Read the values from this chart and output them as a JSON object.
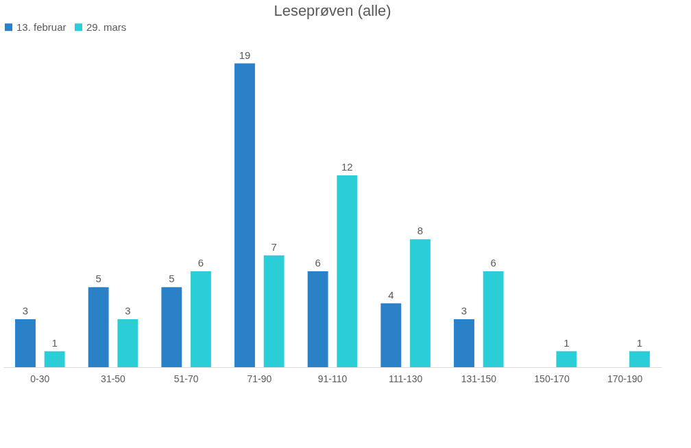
{
  "chart_data": {
    "type": "bar",
    "title": "Leseprøven (alle)",
    "categories": [
      "0-30",
      "31-50",
      "51-70",
      "71-90",
      "91-110",
      "111-130",
      "131-150",
      "150-170",
      "170-190"
    ],
    "series": [
      {
        "name": "13. februar",
        "color": "#2a81c8",
        "values": [
          3,
          5,
          5,
          19,
          6,
          4,
          3,
          null,
          null
        ]
      },
      {
        "name": "29. mars",
        "color": "#2bcdd6",
        "values": [
          1,
          3,
          6,
          7,
          12,
          8,
          6,
          1,
          1
        ]
      }
    ],
    "data_labels": true,
    "grid": false,
    "legend": "top",
    "tick_labels": "x"
  }
}
